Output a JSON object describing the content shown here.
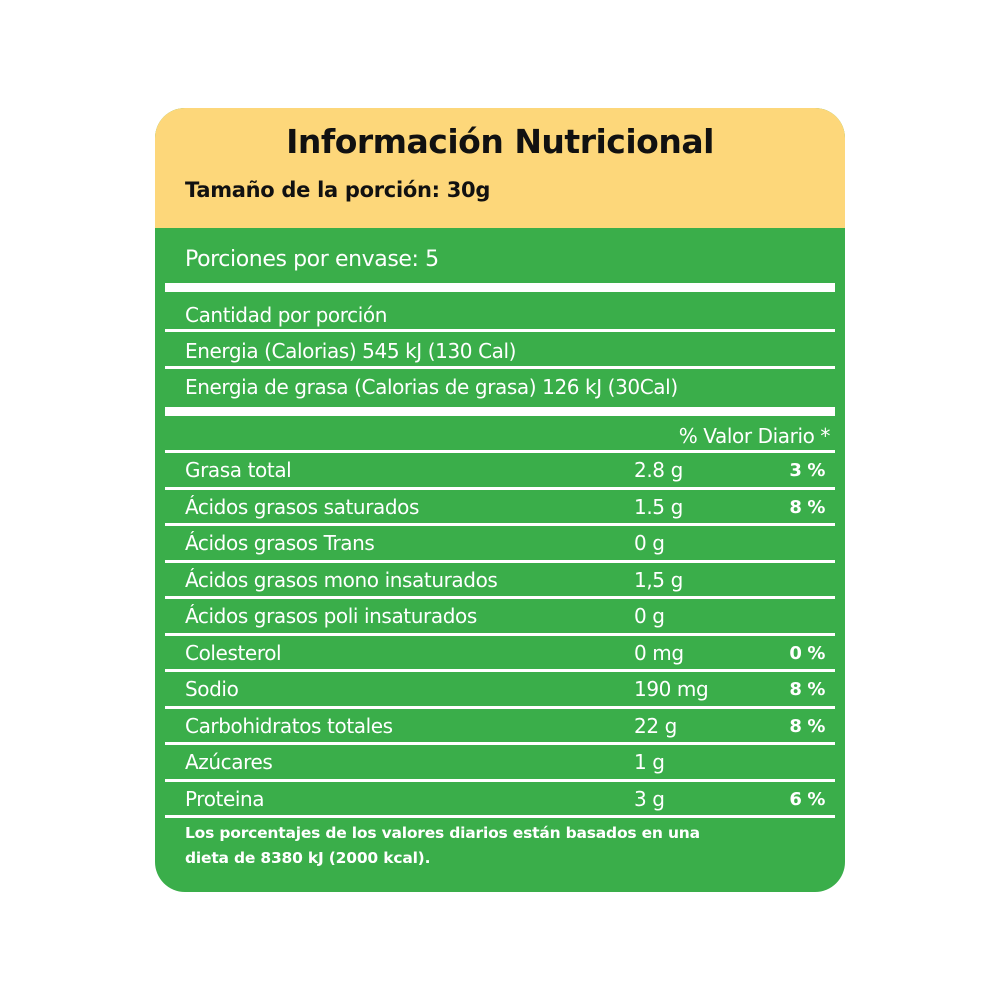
{
  "header": {
    "title": "Información Nutricional",
    "serving_size": "Tamaño de la porción: 30g"
  },
  "servings_per_container": "Porciones  por envase:  5",
  "amount_per_serving": "Cantidad por porción",
  "energy": "Energia (Calorias) 545 kJ (130 Cal)",
  "fat_energy": "Energia de grasa (Calorias de grasa) 126 kJ  (30Cal)",
  "daily_value_header": "% Valor Diario *",
  "nutrients": [
    {
      "name": "Grasa total",
      "amount": "2.8 g",
      "dv": "3 %"
    },
    {
      "name": "Ácidos grasos saturados",
      "amount": "1.5 g",
      "dv": "8 %"
    },
    {
      "name": "Ácidos grasos Trans",
      "amount": "0 g",
      "dv": ""
    },
    {
      "name": "Ácidos grasos mono insaturados",
      "amount": "1,5 g",
      "dv": ""
    },
    {
      "name": "Ácidos grasos poli insaturados",
      "amount": "0 g",
      "dv": ""
    },
    {
      "name": "Colesterol",
      "amount": "0  mg",
      "dv": "0 %"
    },
    {
      "name": "Sodio",
      "amount": "190 mg",
      "dv": "8 %"
    },
    {
      "name": "Carbohidratos totales",
      "amount": "22 g",
      "dv": "8 %"
    },
    {
      "name": "Azúcares",
      "amount": "1 g",
      "dv": ""
    },
    {
      "name": "Proteina",
      "amount": "3 g",
      "dv": "6 %"
    }
  ],
  "footnote": {
    "line1": "Los porcentajes de los valores diarios están basados en una",
    "line2": "dieta de 8380 kJ (2000 kcal)."
  },
  "colors": {
    "header_bg": "#fdd77a",
    "body_bg": "#3aae4a",
    "text_light": "#ffffff"
  }
}
